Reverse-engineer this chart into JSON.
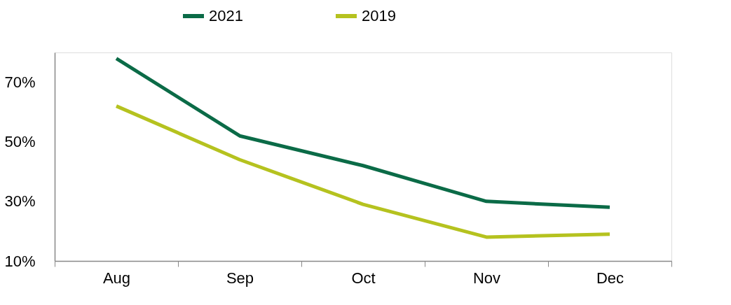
{
  "chart_data": {
    "type": "line",
    "categories": [
      "Aug",
      "Sep",
      "Oct",
      "Nov",
      "Dec"
    ],
    "series": [
      {
        "name": "2021",
        "color": "#0b6b47",
        "values": [
          78,
          52,
          42,
          30,
          28
        ]
      },
      {
        "name": "2019",
        "color": "#b5c21f",
        "values": [
          62,
          44,
          29,
          18,
          19
        ]
      }
    ],
    "ylim": [
      10,
      80
    ],
    "yticks": [
      {
        "value": 10,
        "label": "10%"
      },
      {
        "value": 30,
        "label": "30%"
      },
      {
        "value": 50,
        "label": "50%"
      },
      {
        "value": 70,
        "label": "70%"
      }
    ],
    "grid": false,
    "legend": "top",
    "marker": "none",
    "line_style": "solid"
  }
}
